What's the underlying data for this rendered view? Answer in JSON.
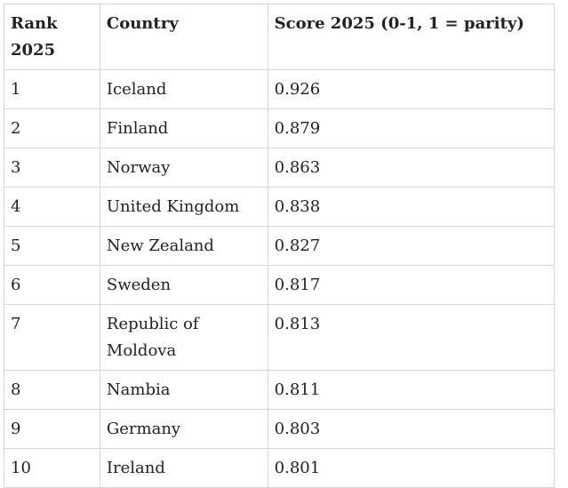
{
  "table": {
    "headers": [
      "Rank 2025",
      "Country",
      "Score 2025 (0-1, 1 = parity)"
    ],
    "rows": [
      [
        "1",
        "Iceland",
        "0.926"
      ],
      [
        "2",
        "Finland",
        "0.879"
      ],
      [
        "3",
        "Norway",
        "0.863"
      ],
      [
        "4",
        "United Kingdom",
        "0.838"
      ],
      [
        "5",
        "New Zealand",
        "0.827"
      ],
      [
        "6",
        "Sweden",
        "0.817"
      ],
      [
        "7",
        "Republic of Moldova",
        "0.813"
      ],
      [
        "8",
        "Nambia",
        "0.811"
      ],
      [
        "9",
        "Germany",
        "0.803"
      ],
      [
        "10",
        "Ireland",
        "0.801"
      ]
    ]
  }
}
